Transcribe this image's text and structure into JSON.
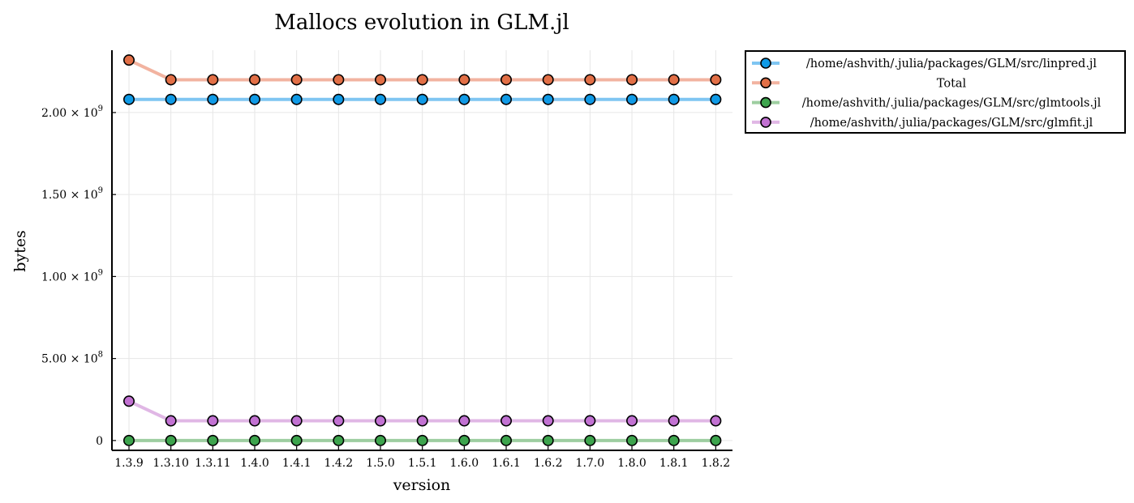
{
  "chart_data": {
    "type": "line",
    "title": "Mallocs evolution in GLM.jl",
    "xlabel": "version",
    "ylabel": "bytes",
    "categories": [
      "1.3.9",
      "1.3.10",
      "1.3.11",
      "1.4.0",
      "1.4.1",
      "1.4.2",
      "1.5.0",
      "1.5.1",
      "1.6.0",
      "1.6.1",
      "1.6.2",
      "1.7.0",
      "1.8.0",
      "1.8.1",
      "1.8.2"
    ],
    "ylim": [
      -60000000,
      2380000000
    ],
    "yticks": [
      {
        "value": 0,
        "mantissa": "0",
        "exp": ""
      },
      {
        "value": 500000000,
        "mantissa": "5.00 × 10",
        "exp": "8"
      },
      {
        "value": 1000000000,
        "mantissa": "1.00 × 10",
        "exp": "9"
      },
      {
        "value": 1500000000,
        "mantissa": "1.50 × 10",
        "exp": "9"
      },
      {
        "value": 2000000000,
        "mantissa": "2.00 × 10",
        "exp": "9"
      }
    ],
    "grid": true,
    "legend_position": "outer-top-right",
    "series": [
      {
        "name": "/home/ashvith/.julia/packages/GLM/src/linpred.jl",
        "line_color": "#7fc5f2",
        "marker_color": "#0f9ae6",
        "values": [
          2080000000,
          2080000000,
          2080000000,
          2080000000,
          2080000000,
          2080000000,
          2080000000,
          2080000000,
          2080000000,
          2080000000,
          2080000000,
          2080000000,
          2080000000,
          2080000000,
          2080000000
        ]
      },
      {
        "name": "Total",
        "line_color": "#f2b3a0",
        "marker_color": "#e26f46",
        "values": [
          2320000000,
          2200000000,
          2200000000,
          2200000000,
          2200000000,
          2200000000,
          2200000000,
          2200000000,
          2200000000,
          2200000000,
          2200000000,
          2200000000,
          2200000000,
          2200000000,
          2200000000
        ]
      },
      {
        "name": "/home/ashvith/.julia/packages/GLM/src/glmtools.jl",
        "line_color": "#9dcea0",
        "marker_color": "#3da44d",
        "values": [
          0,
          0,
          0,
          0,
          0,
          0,
          0,
          0,
          0,
          0,
          0,
          0,
          0,
          0,
          0
        ]
      },
      {
        "name": "/home/ashvith/.julia/packages/GLM/src/glmfit.jl",
        "line_color": "#e0b7e5",
        "marker_color": "#c271d2",
        "values": [
          240000000,
          120000000,
          120000000,
          120000000,
          120000000,
          120000000,
          120000000,
          120000000,
          120000000,
          120000000,
          120000000,
          120000000,
          120000000,
          120000000,
          120000000
        ]
      }
    ]
  }
}
